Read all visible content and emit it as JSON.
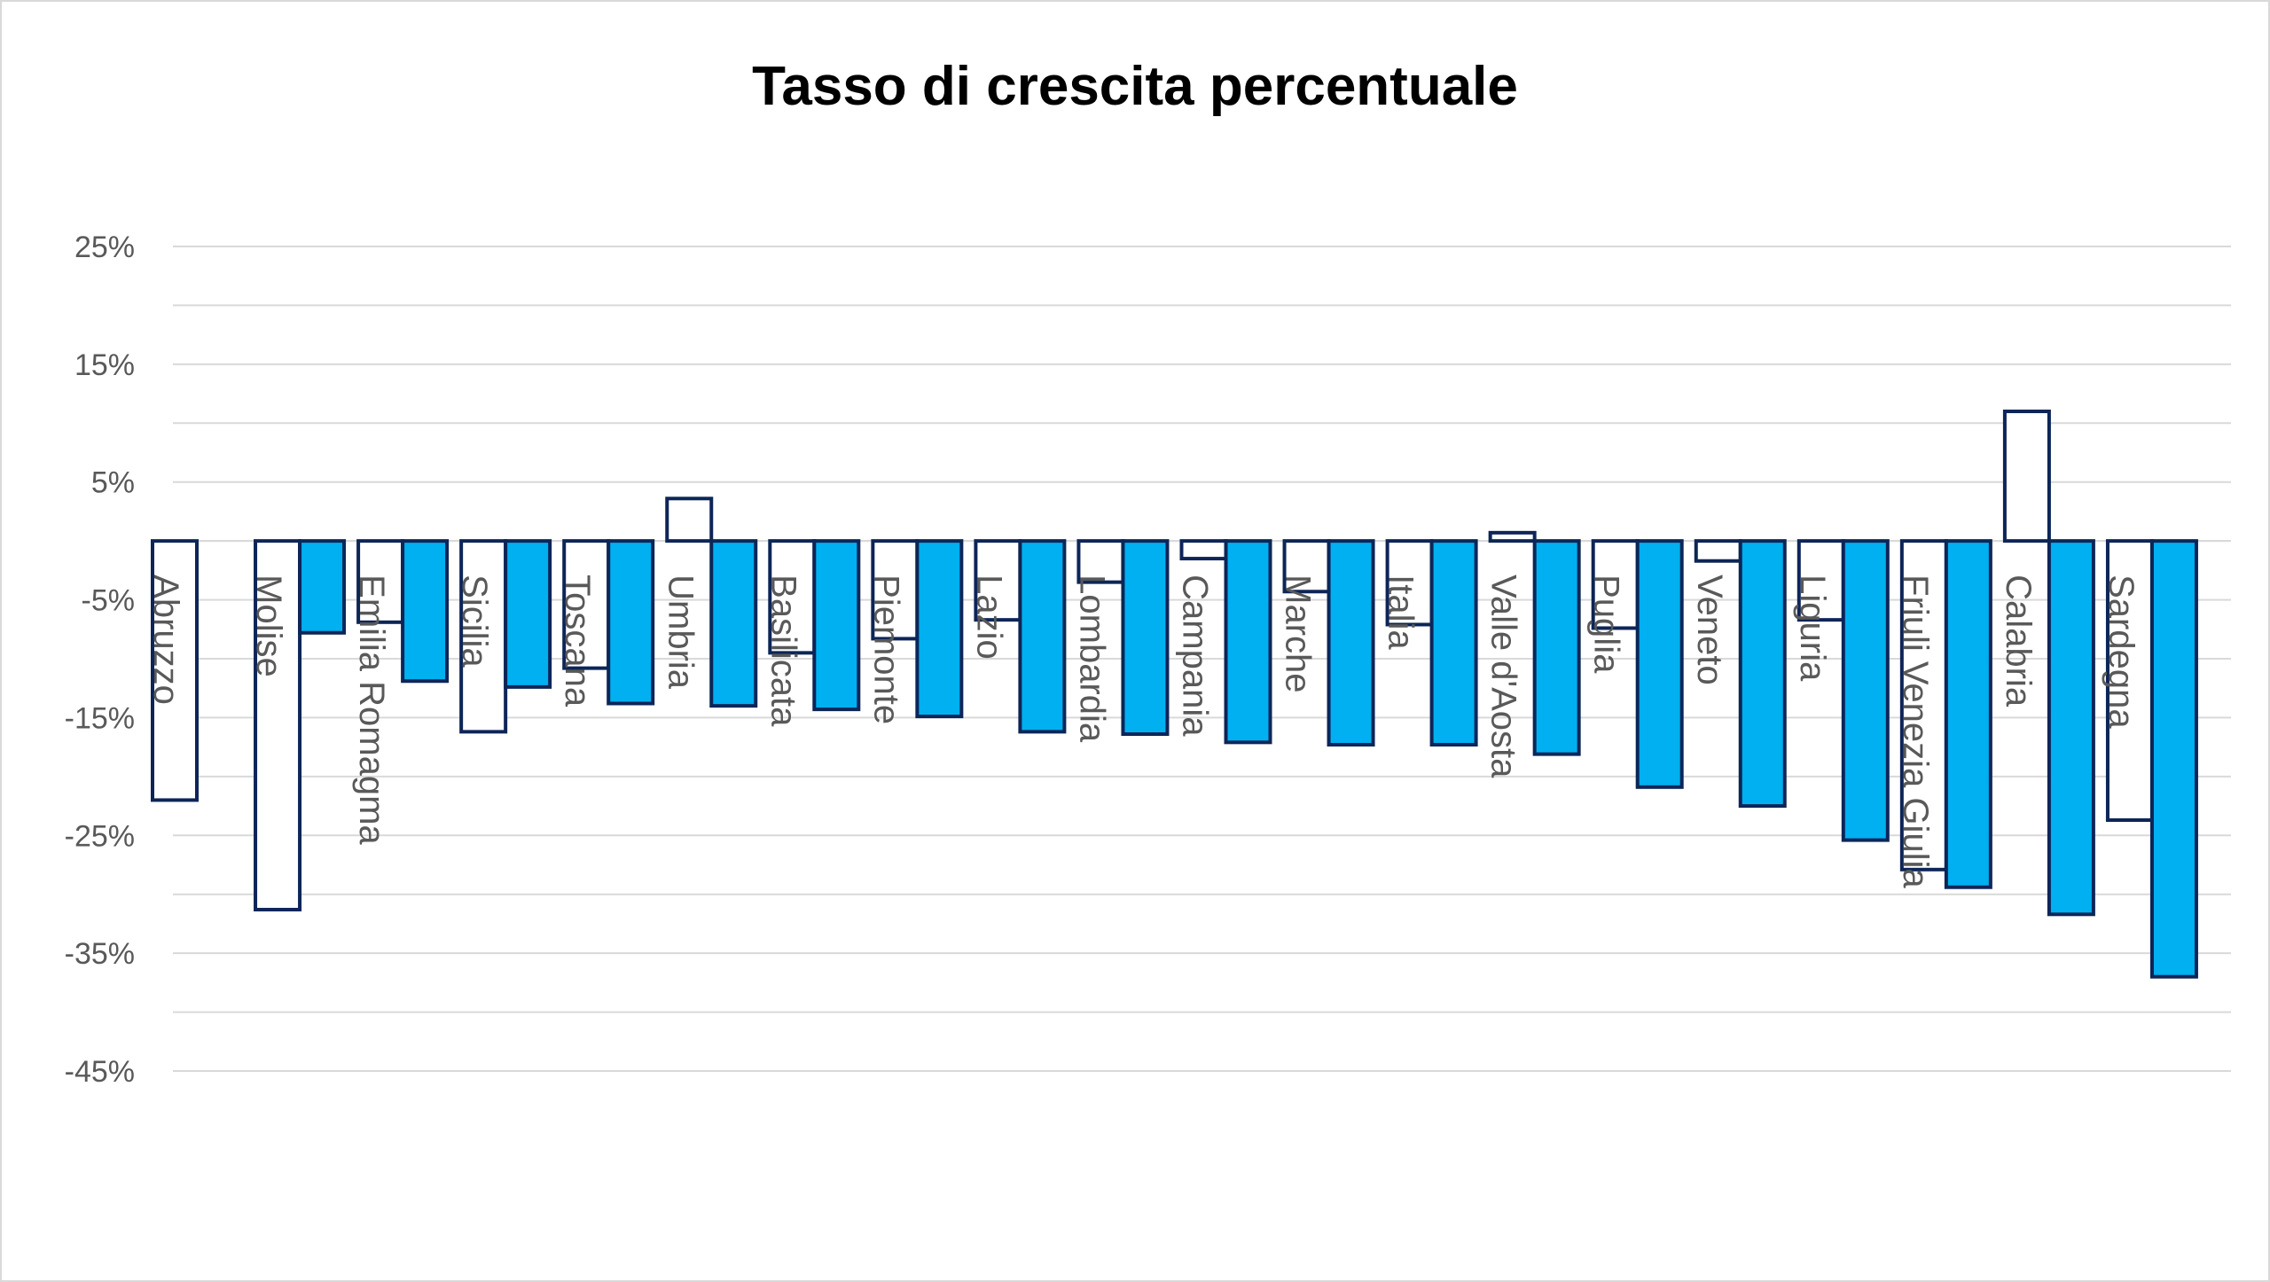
{
  "chart_data": {
    "type": "bar",
    "title": "Tasso di crescita percentuale",
    "xlabel": "",
    "ylabel": "",
    "ylim": [
      -45,
      25
    ],
    "yticks": [
      "25%",
      "15%",
      "5%",
      "-5%",
      "-15%",
      "-25%",
      "-35%",
      "-45%"
    ],
    "grid": true,
    "legend": "none",
    "categories": [
      "Abruzzo",
      "Molise",
      "Emilia Romagma",
      "Sicilia",
      "Toscana",
      "Umbria",
      "Basilicata",
      "Piemonte",
      "Lazio",
      "Lombardia",
      "Campania",
      "Marche",
      "Italia",
      "Valle d'Aosta",
      "Puglia",
      "Veneto",
      "Liguria",
      "Friuli Venezia Giulia",
      "Calabria",
      "Sardegna"
    ],
    "series": [
      {
        "color": "#ffffff",
        "stroke": "#0d2557",
        "values": [
          -22.0,
          -31.3,
          -6.9,
          -16.2,
          -10.8,
          3.6,
          -9.5,
          -8.3,
          -6.7,
          -3.5,
          -1.5,
          -4.3,
          -7.1,
          0.7,
          -7.4,
          -1.7,
          -6.7,
          -27.9,
          11.0,
          -23.7
        ]
      },
      {
        "color": "#00b0f0",
        "stroke": "#0d2557",
        "values": [
          null,
          -7.8,
          -11.9,
          -12.4,
          -13.8,
          -14.0,
          -14.3,
          -14.9,
          -16.2,
          -16.4,
          -17.1,
          -17.3,
          -17.3,
          -18.1,
          -20.9,
          -22.5,
          -25.4,
          -29.4,
          -31.7,
          -37.0
        ]
      }
    ]
  }
}
